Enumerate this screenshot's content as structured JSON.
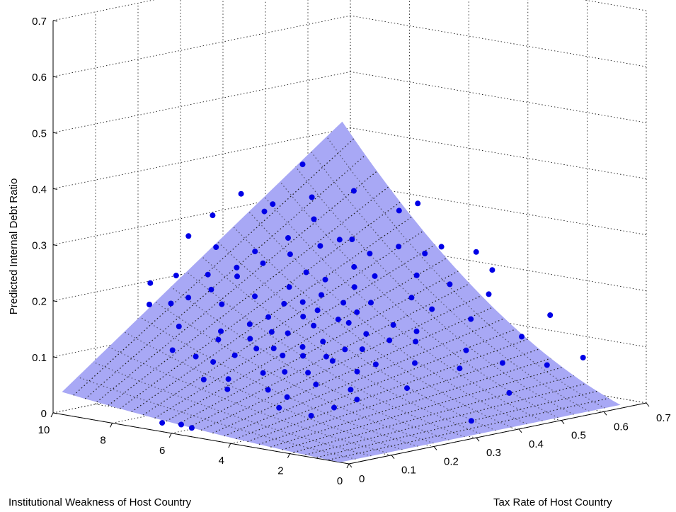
{
  "chart_data": {
    "type": "scatter",
    "subtype": "3d-surface-with-points",
    "title": "",
    "xlabel": "Tax Rate of Host Country",
    "ylabel": "Institutional Weakness of Host Country",
    "zlabel": "Predicted Internal Debt Ratio",
    "xlim": [
      0,
      0.7
    ],
    "ylim": [
      0,
      10
    ],
    "zlim": [
      0,
      0.7
    ],
    "x_ticks": [
      "0",
      "0.1",
      "0.2",
      "0.3",
      "0.4",
      "0.5",
      "0.6",
      "0.7"
    ],
    "y_ticks": [
      "0",
      "2",
      "4",
      "6",
      "8",
      "10"
    ],
    "z_ticks": [
      "0",
      "0.1",
      "0.2",
      "0.3",
      "0.4",
      "0.5",
      "0.6",
      "0.7"
    ],
    "grid": true,
    "surface": {
      "color": "#a8a8f5",
      "corners": [
        {
          "x": 0.0,
          "y": 0.3,
          "z": 0.0
        },
        {
          "x": 0.66,
          "y": 0.3,
          "z": 0.0
        },
        {
          "x": 0.0,
          "y": 9.7,
          "z": 0.04
        },
        {
          "x": 0.66,
          "y": 9.7,
          "z": 0.42
        }
      ]
    },
    "series": [
      {
        "marker_color": "#0000e6",
        "points": [
          [
            0.02,
            6.6,
            0.01
          ],
          [
            0.03,
            6.1,
            0.01
          ],
          [
            0.02,
            5.6,
            0.01
          ],
          [
            0.33,
            0.6,
            0.02
          ],
          [
            0.44,
            0.9,
            0.05
          ],
          [
            0.55,
            1.2,
            0.08
          ],
          [
            0.6,
            0.7,
            0.09
          ],
          [
            0.56,
            2.2,
            0.12
          ],
          [
            0.62,
            2.1,
            0.15
          ],
          [
            0.58,
            3.6,
            0.18
          ],
          [
            0.62,
            4.6,
            0.24
          ],
          [
            0.63,
            4.2,
            0.21
          ],
          [
            0.58,
            5.2,
            0.25
          ],
          [
            0.48,
            4.6,
            0.22
          ],
          [
            0.41,
            6.2,
            0.28
          ],
          [
            0.35,
            7.6,
            0.34
          ],
          [
            0.44,
            4.2,
            0.19
          ],
          [
            0.38,
            3.2,
            0.13
          ],
          [
            0.45,
            2.5,
            0.11
          ],
          [
            0.32,
            4.6,
            0.16
          ],
          [
            0.24,
            4.0,
            0.11
          ],
          [
            0.18,
            3.7,
            0.08
          ],
          [
            0.22,
            3.1,
            0.07
          ],
          [
            0.16,
            2.8,
            0.05
          ],
          [
            0.12,
            3.0,
            0.04
          ],
          [
            0.1,
            3.8,
            0.05
          ],
          [
            0.13,
            4.6,
            0.07
          ],
          [
            0.09,
            5.4,
            0.07
          ],
          [
            0.09,
            6.2,
            0.08
          ],
          [
            0.12,
            6.9,
            0.11
          ],
          [
            0.1,
            7.4,
            0.12
          ],
          [
            0.15,
            7.9,
            0.15
          ],
          [
            0.2,
            7.2,
            0.14
          ],
          [
            0.24,
            6.8,
            0.15
          ],
          [
            0.2,
            6.0,
            0.12
          ],
          [
            0.26,
            5.8,
            0.14
          ],
          [
            0.3,
            5.5,
            0.15
          ],
          [
            0.28,
            4.9,
            0.13
          ],
          [
            0.33,
            5.1,
            0.16
          ],
          [
            0.37,
            5.5,
            0.18
          ],
          [
            0.36,
            4.9,
            0.17
          ],
          [
            0.4,
            5.0,
            0.18
          ],
          [
            0.3,
            6.5,
            0.18
          ],
          [
            0.34,
            6.9,
            0.2
          ],
          [
            0.28,
            7.2,
            0.19
          ],
          [
            0.23,
            7.6,
            0.18
          ],
          [
            0.2,
            8.3,
            0.19
          ],
          [
            0.26,
            8.5,
            0.22
          ],
          [
            0.3,
            8.1,
            0.23
          ],
          [
            0.35,
            8.2,
            0.25
          ],
          [
            0.4,
            7.8,
            0.27
          ],
          [
            0.42,
            7.0,
            0.26
          ],
          [
            0.46,
            6.5,
            0.27
          ],
          [
            0.46,
            5.9,
            0.25
          ],
          [
            0.5,
            5.5,
            0.26
          ],
          [
            0.52,
            4.9,
            0.25
          ],
          [
            0.16,
            5.2,
            0.09
          ],
          [
            0.19,
            4.9,
            0.09
          ],
          [
            0.22,
            5.4,
            0.11
          ],
          [
            0.24,
            5.0,
            0.11
          ],
          [
            0.26,
            4.5,
            0.11
          ],
          [
            0.29,
            4.3,
            0.12
          ],
          [
            0.31,
            4.0,
            0.12
          ],
          [
            0.34,
            4.3,
            0.14
          ],
          [
            0.36,
            3.8,
            0.13
          ],
          [
            0.39,
            4.1,
            0.15
          ],
          [
            0.41,
            3.6,
            0.14
          ],
          [
            0.27,
            3.6,
            0.09
          ],
          [
            0.21,
            4.4,
            0.09
          ],
          [
            0.17,
            6.3,
            0.11
          ],
          [
            0.14,
            6.6,
            0.1
          ],
          [
            0.18,
            7.0,
            0.13
          ],
          [
            0.22,
            6.5,
            0.13
          ],
          [
            0.25,
            6.2,
            0.14
          ],
          [
            0.27,
            6.6,
            0.16
          ],
          [
            0.31,
            6.0,
            0.16
          ],
          [
            0.33,
            6.3,
            0.18
          ],
          [
            0.36,
            6.1,
            0.19
          ],
          [
            0.39,
            6.4,
            0.21
          ],
          [
            0.38,
            6.9,
            0.22
          ],
          [
            0.43,
            6.0,
            0.23
          ],
          [
            0.37,
            7.3,
            0.25
          ],
          [
            0.32,
            7.5,
            0.24
          ],
          [
            0.28,
            7.8,
            0.22
          ],
          [
            0.24,
            8.1,
            0.2
          ],
          [
            0.18,
            8.6,
            0.18
          ],
          [
            0.15,
            8.9,
            0.18
          ],
          [
            0.22,
            9.0,
            0.22
          ],
          [
            0.3,
            8.8,
            0.26
          ],
          [
            0.4,
            8.6,
            0.31
          ],
          [
            0.47,
            8.0,
            0.33
          ],
          [
            0.52,
            7.3,
            0.34
          ],
          [
            0.46,
            3.8,
            0.17
          ],
          [
            0.51,
            3.2,
            0.15
          ],
          [
            0.53,
            4.2,
            0.2
          ],
          [
            0.43,
            5.3,
            0.22
          ],
          [
            0.12,
            5.8,
            0.08
          ],
          [
            0.14,
            4.1,
            0.06
          ],
          [
            0.2,
            2.6,
            0.06
          ],
          [
            0.3,
            3.4,
            0.1
          ],
          [
            0.35,
            2.8,
            0.1
          ],
          [
            0.29,
            2.2,
            0.07
          ],
          [
            0.4,
            2.0,
            0.09
          ],
          [
            0.48,
            1.7,
            0.09
          ],
          [
            0.22,
            5.7,
            0.12
          ],
          [
            0.26,
            5.3,
            0.12
          ],
          [
            0.33,
            5.8,
            0.17
          ],
          [
            0.41,
            5.7,
            0.2
          ],
          [
            0.55,
            6.2,
            0.31
          ],
          [
            0.58,
            6.0,
            0.32
          ],
          [
            0.44,
            7.5,
            0.3
          ],
          [
            0.49,
            8.6,
            0.38
          ],
          [
            0.32,
            9.2,
            0.31
          ],
          [
            0.27,
            9.3,
            0.28
          ],
          [
            0.38,
            9.1,
            0.34
          ],
          [
            0.18,
            9.3,
            0.21
          ]
        ]
      }
    ]
  }
}
